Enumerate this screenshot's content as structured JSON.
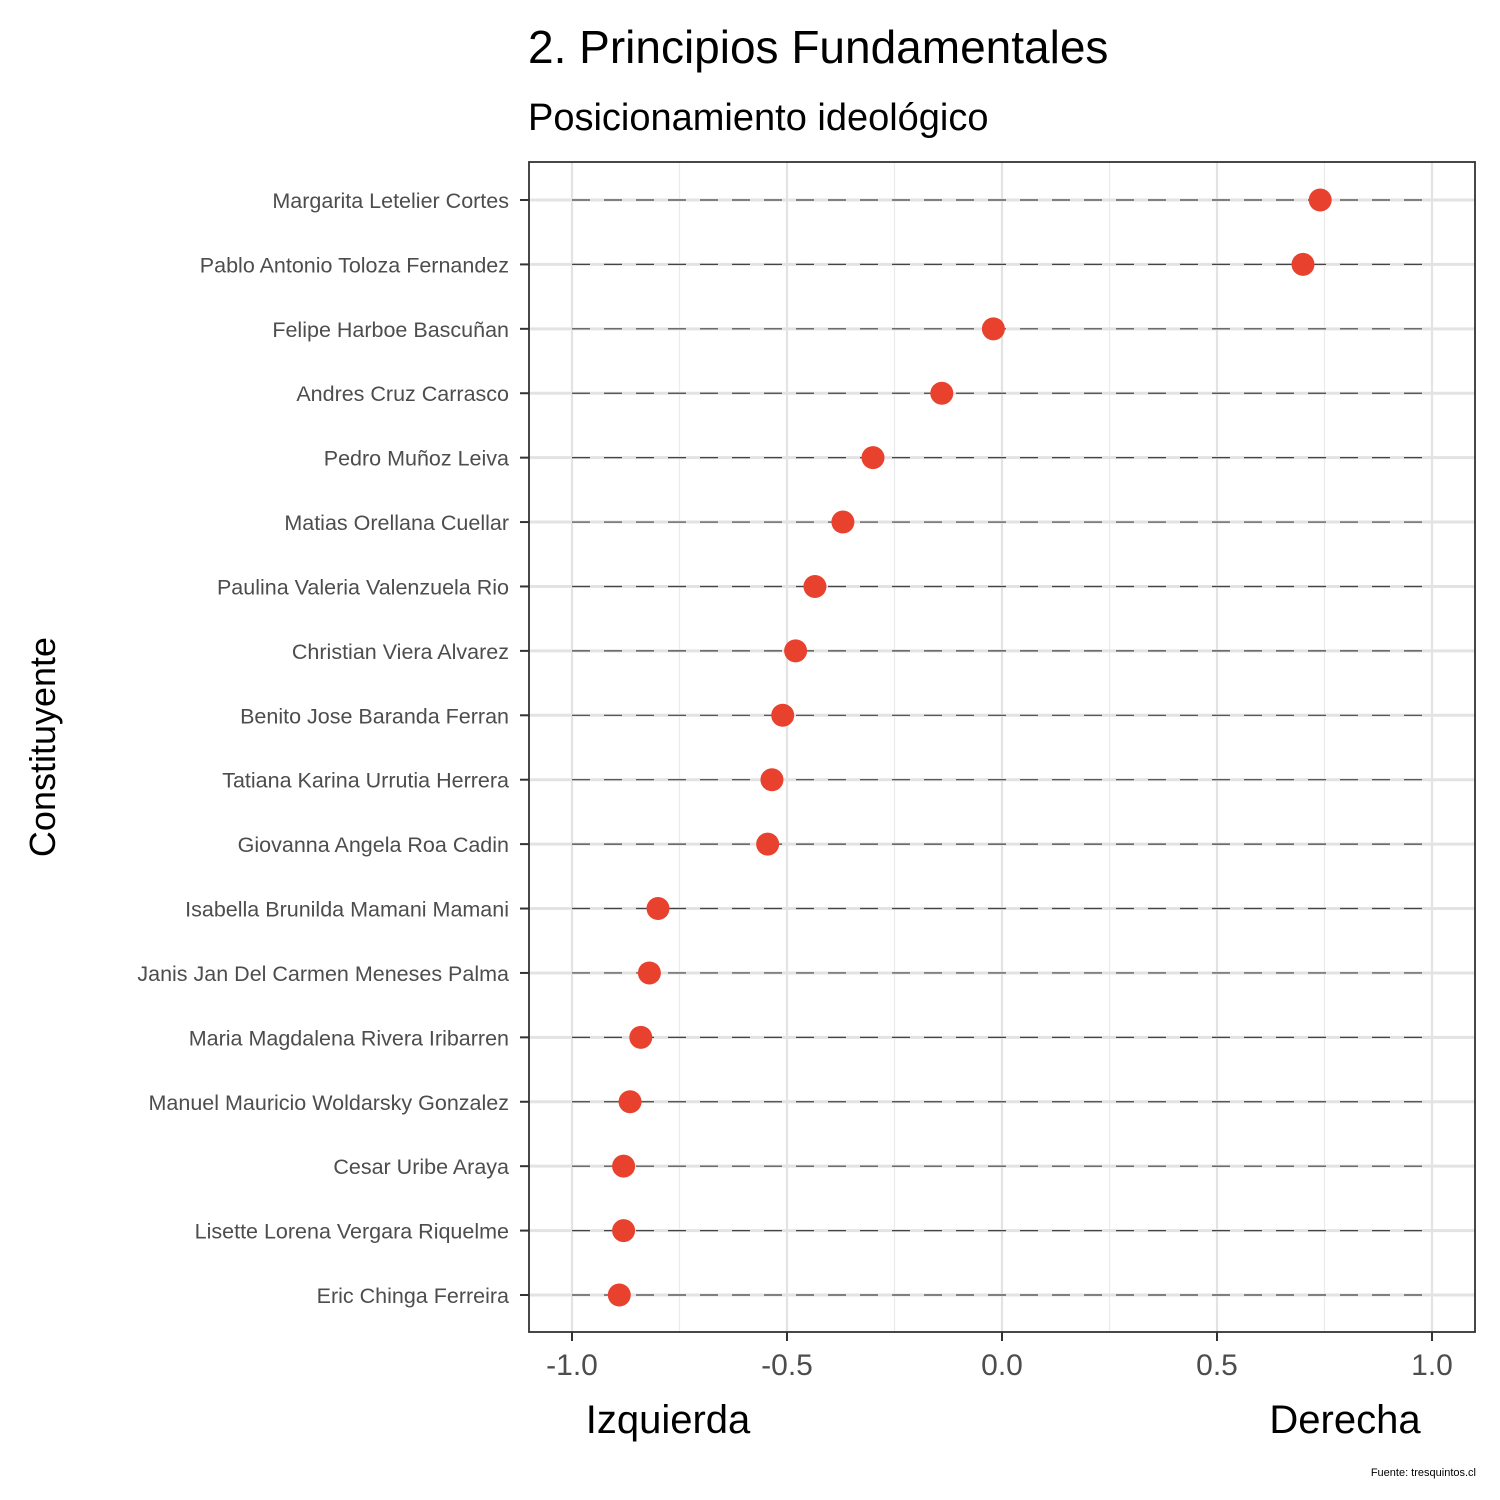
{
  "chart_data": {
    "type": "scatter",
    "title": "2. Principios Fundamentales",
    "subtitle": "Posicionamiento ideológico",
    "ylabel": "Constituyente",
    "xlabel_left": "Izquierda",
    "xlabel_right": "Derecha",
    "caption": "Fuente: tresquintos.cl",
    "xlim": [
      -1.1,
      1.1
    ],
    "xticks": [
      -1.0,
      -0.5,
      0.0,
      0.5,
      1.0
    ],
    "xtick_labels": [
      "-1.0",
      "-0.5",
      "0.0",
      "0.5",
      "1.0"
    ],
    "grid": true,
    "point_color": "#E8412E",
    "points": [
      {
        "name": "Margarita Letelier Cortes",
        "x": 0.74
      },
      {
        "name": "Pablo Antonio Toloza Fernandez",
        "x": 0.7
      },
      {
        "name": "Felipe Harboe Bascuñan",
        "x": -0.02
      },
      {
        "name": "Andres Cruz Carrasco",
        "x": -0.14
      },
      {
        "name": "Pedro Muñoz Leiva",
        "x": -0.3
      },
      {
        "name": "Matias Orellana Cuellar",
        "x": -0.37
      },
      {
        "name": "Paulina Valeria Valenzuela Rio",
        "x": -0.435
      },
      {
        "name": "Christian Viera Alvarez",
        "x": -0.48
      },
      {
        "name": "Benito Jose Baranda Ferran",
        "x": -0.51
      },
      {
        "name": "Tatiana Karina Urrutia Herrera",
        "x": -0.535
      },
      {
        "name": "Giovanna Angela Roa Cadin",
        "x": -0.545
      },
      {
        "name": "Isabella Brunilda Mamani Mamani",
        "x": -0.8
      },
      {
        "name": "Janis Jan Del Carmen Meneses Palma",
        "x": -0.82
      },
      {
        "name": "Maria Magdalena Rivera Iribarren",
        "x": -0.84
      },
      {
        "name": "Manuel Mauricio Woldarsky Gonzalez",
        "x": -0.865
      },
      {
        "name": "Cesar Uribe Araya",
        "x": -0.88
      },
      {
        "name": "Lisette Lorena Vergara Riquelme",
        "x": -0.88
      },
      {
        "name": "Eric Chinga Ferreira",
        "x": -0.89
      }
    ]
  }
}
